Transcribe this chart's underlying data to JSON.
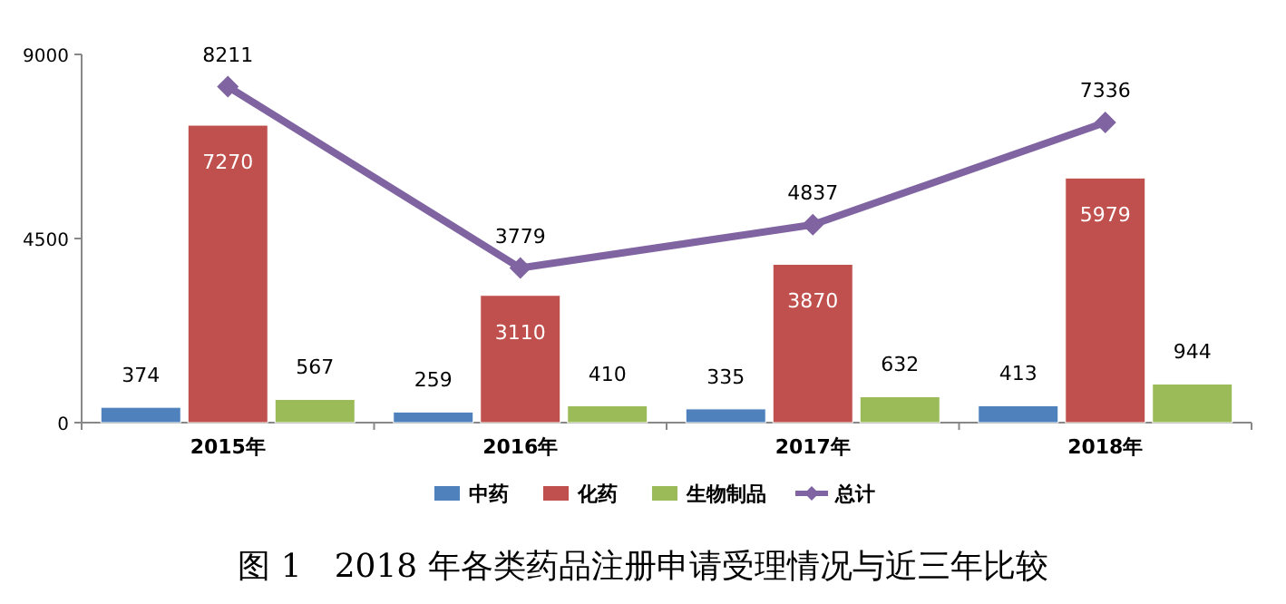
{
  "chart_data": {
    "type": "bar",
    "title": "图 1　2018 年各类药品注册申请受理情况与近三年比较",
    "categories": [
      "2015年",
      "2016年",
      "2017年",
      "2018年"
    ],
    "series": [
      {
        "name": "中药",
        "color": "#4f81bd",
        "values": [
          374,
          259,
          335,
          413
        ]
      },
      {
        "name": "化药",
        "color": "#c0504d",
        "values": [
          7270,
          3110,
          3870,
          5979
        ]
      },
      {
        "name": "生物制品",
        "color": "#9bbb59",
        "values": [
          567,
          410,
          632,
          944
        ]
      },
      {
        "name": "总计",
        "type": "line",
        "color": "#8064a2",
        "marker": "diamond",
        "values": [
          8211,
          3779,
          4837,
          7336
        ]
      }
    ],
    "ylim": [
      0,
      9000
    ],
    "yticks": [
      0,
      4500,
      9000
    ],
    "data_labels": true,
    "legend": "bottom",
    "grid": false
  }
}
